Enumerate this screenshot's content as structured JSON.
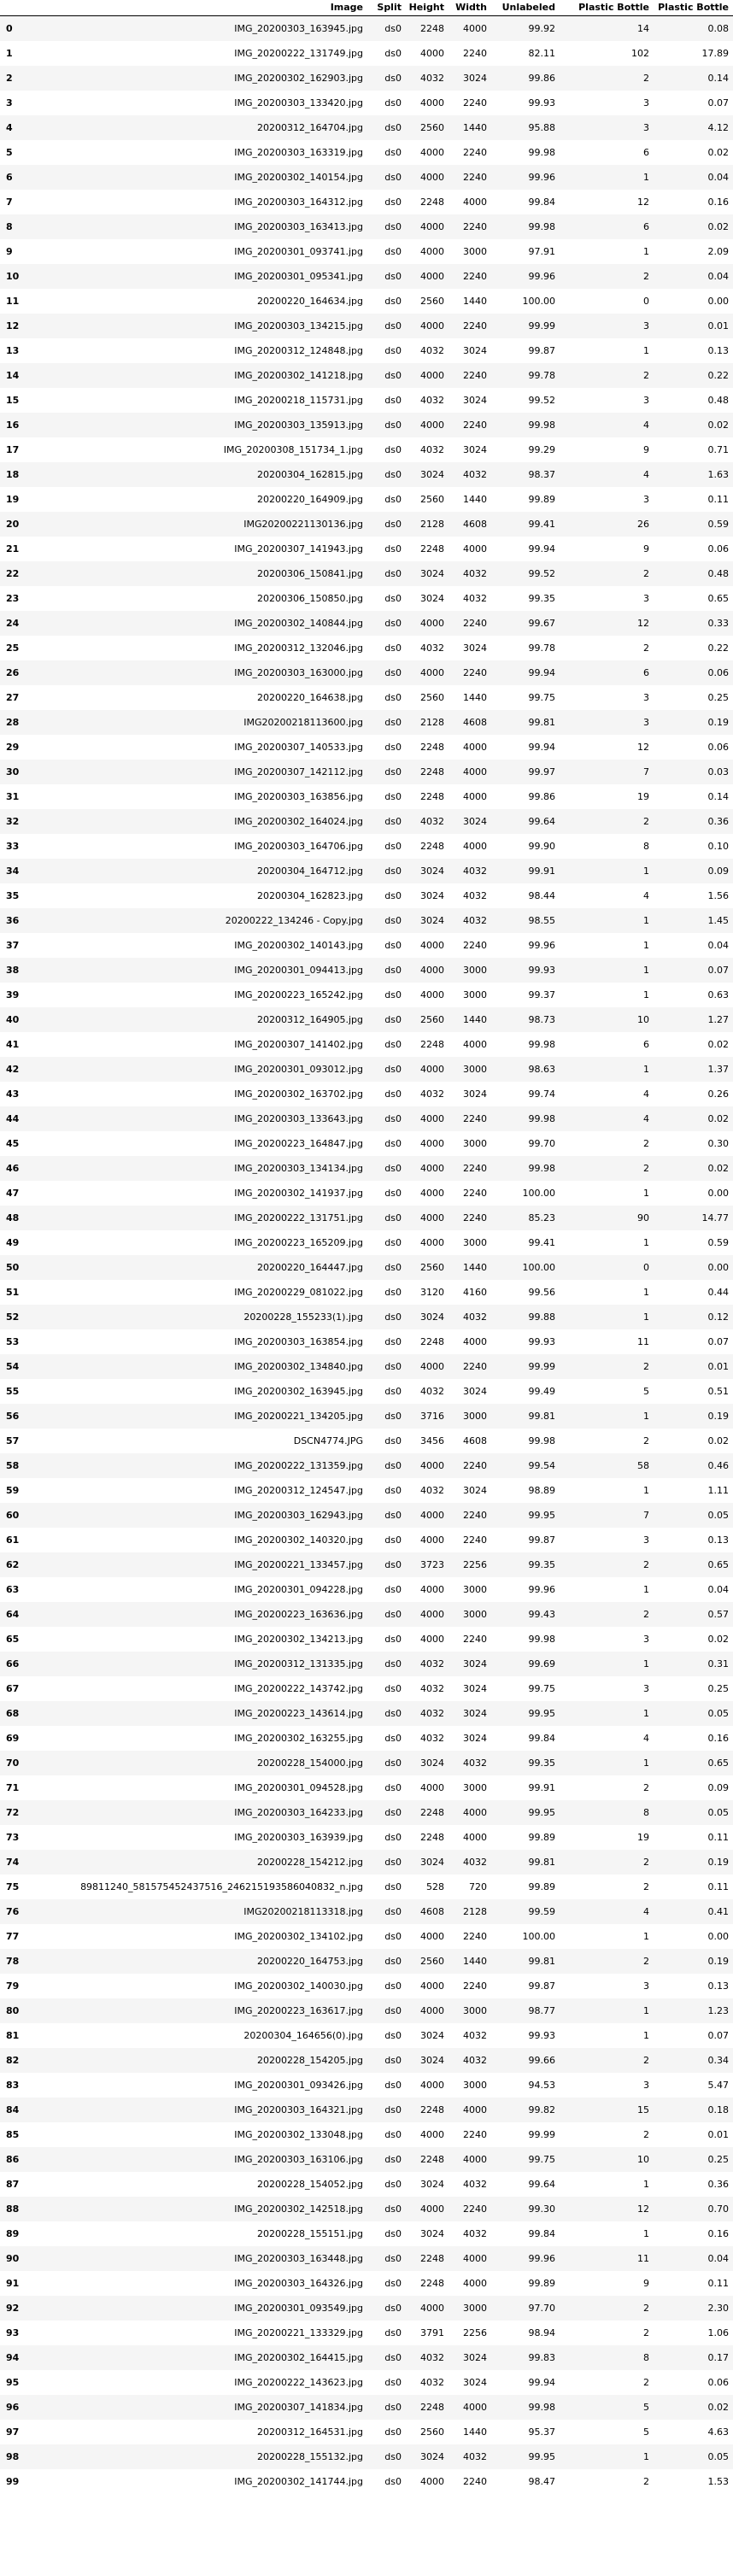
{
  "table": {
    "headers": [
      "",
      "Image",
      "Split",
      "Height",
      "Width",
      "Unlabeled",
      "Plastic Bottle",
      "Plastic Bottle"
    ],
    "rows": [
      [
        "0",
        "IMG_20200303_163945.jpg",
        "ds0",
        "2248",
        "4000",
        "99.92",
        "14",
        "0.08"
      ],
      [
        "1",
        "IMG_20200222_131749.jpg",
        "ds0",
        "4000",
        "2240",
        "82.11",
        "102",
        "17.89"
      ],
      [
        "2",
        "IMG_20200302_162903.jpg",
        "ds0",
        "4032",
        "3024",
        "99.86",
        "2",
        "0.14"
      ],
      [
        "3",
        "IMG_20200303_133420.jpg",
        "ds0",
        "4000",
        "2240",
        "99.93",
        "3",
        "0.07"
      ],
      [
        "4",
        "20200312_164704.jpg",
        "ds0",
        "2560",
        "1440",
        "95.88",
        "3",
        "4.12"
      ],
      [
        "5",
        "IMG_20200303_163319.jpg",
        "ds0",
        "4000",
        "2240",
        "99.98",
        "6",
        "0.02"
      ],
      [
        "6",
        "IMG_20200302_140154.jpg",
        "ds0",
        "4000",
        "2240",
        "99.96",
        "1",
        "0.04"
      ],
      [
        "7",
        "IMG_20200303_164312.jpg",
        "ds0",
        "2248",
        "4000",
        "99.84",
        "12",
        "0.16"
      ],
      [
        "8",
        "IMG_20200303_163413.jpg",
        "ds0",
        "4000",
        "2240",
        "99.98",
        "6",
        "0.02"
      ],
      [
        "9",
        "IMG_20200301_093741.jpg",
        "ds0",
        "4000",
        "3000",
        "97.91",
        "1",
        "2.09"
      ],
      [
        "10",
        "IMG_20200301_095341.jpg",
        "ds0",
        "4000",
        "2240",
        "99.96",
        "2",
        "0.04"
      ],
      [
        "11",
        "20200220_164634.jpg",
        "ds0",
        "2560",
        "1440",
        "100.00",
        "0",
        "0.00"
      ],
      [
        "12",
        "IMG_20200303_134215.jpg",
        "ds0",
        "4000",
        "2240",
        "99.99",
        "3",
        "0.01"
      ],
      [
        "13",
        "IMG_20200312_124848.jpg",
        "ds0",
        "4032",
        "3024",
        "99.87",
        "1",
        "0.13"
      ],
      [
        "14",
        "IMG_20200302_141218.jpg",
        "ds0",
        "4000",
        "2240",
        "99.78",
        "2",
        "0.22"
      ],
      [
        "15",
        "IMG_20200218_115731.jpg",
        "ds0",
        "4032",
        "3024",
        "99.52",
        "3",
        "0.48"
      ],
      [
        "16",
        "IMG_20200303_135913.jpg",
        "ds0",
        "4000",
        "2240",
        "99.98",
        "4",
        "0.02"
      ],
      [
        "17",
        "IMG_20200308_151734_1.jpg",
        "ds0",
        "4032",
        "3024",
        "99.29",
        "9",
        "0.71"
      ],
      [
        "18",
        "20200304_162815.jpg",
        "ds0",
        "3024",
        "4032",
        "98.37",
        "4",
        "1.63"
      ],
      [
        "19",
        "20200220_164909.jpg",
        "ds0",
        "2560",
        "1440",
        "99.89",
        "3",
        "0.11"
      ],
      [
        "20",
        "IMG20200221130136.jpg",
        "ds0",
        "2128",
        "4608",
        "99.41",
        "26",
        "0.59"
      ],
      [
        "21",
        "IMG_20200307_141943.jpg",
        "ds0",
        "2248",
        "4000",
        "99.94",
        "9",
        "0.06"
      ],
      [
        "22",
        "20200306_150841.jpg",
        "ds0",
        "3024",
        "4032",
        "99.52",
        "2",
        "0.48"
      ],
      [
        "23",
        "20200306_150850.jpg",
        "ds0",
        "3024",
        "4032",
        "99.35",
        "3",
        "0.65"
      ],
      [
        "24",
        "IMG_20200302_140844.jpg",
        "ds0",
        "4000",
        "2240",
        "99.67",
        "12",
        "0.33"
      ],
      [
        "25",
        "IMG_20200312_132046.jpg",
        "ds0",
        "4032",
        "3024",
        "99.78",
        "2",
        "0.22"
      ],
      [
        "26",
        "IMG_20200303_163000.jpg",
        "ds0",
        "4000",
        "2240",
        "99.94",
        "6",
        "0.06"
      ],
      [
        "27",
        "20200220_164638.jpg",
        "ds0",
        "2560",
        "1440",
        "99.75",
        "3",
        "0.25"
      ],
      [
        "28",
        "IMG20200218113600.jpg",
        "ds0",
        "2128",
        "4608",
        "99.81",
        "3",
        "0.19"
      ],
      [
        "29",
        "IMG_20200307_140533.jpg",
        "ds0",
        "2248",
        "4000",
        "99.94",
        "12",
        "0.06"
      ],
      [
        "30",
        "IMG_20200307_142112.jpg",
        "ds0",
        "2248",
        "4000",
        "99.97",
        "7",
        "0.03"
      ],
      [
        "31",
        "IMG_20200303_163856.jpg",
        "ds0",
        "2248",
        "4000",
        "99.86",
        "19",
        "0.14"
      ],
      [
        "32",
        "IMG_20200302_164024.jpg",
        "ds0",
        "4032",
        "3024",
        "99.64",
        "2",
        "0.36"
      ],
      [
        "33",
        "IMG_20200303_164706.jpg",
        "ds0",
        "2248",
        "4000",
        "99.90",
        "8",
        "0.10"
      ],
      [
        "34",
        "20200304_164712.jpg",
        "ds0",
        "3024",
        "4032",
        "99.91",
        "1",
        "0.09"
      ],
      [
        "35",
        "20200304_162823.jpg",
        "ds0",
        "3024",
        "4032",
        "98.44",
        "4",
        "1.56"
      ],
      [
        "36",
        "20200222_134246 - Copy.jpg",
        "ds0",
        "3024",
        "4032",
        "98.55",
        "1",
        "1.45"
      ],
      [
        "37",
        "IMG_20200302_140143.jpg",
        "ds0",
        "4000",
        "2240",
        "99.96",
        "1",
        "0.04"
      ],
      [
        "38",
        "IMG_20200301_094413.jpg",
        "ds0",
        "4000",
        "3000",
        "99.93",
        "1",
        "0.07"
      ],
      [
        "39",
        "IMG_20200223_165242.jpg",
        "ds0",
        "4000",
        "3000",
        "99.37",
        "1",
        "0.63"
      ],
      [
        "40",
        "20200312_164905.jpg",
        "ds0",
        "2560",
        "1440",
        "98.73",
        "10",
        "1.27"
      ],
      [
        "41",
        "IMG_20200307_141402.jpg",
        "ds0",
        "2248",
        "4000",
        "99.98",
        "6",
        "0.02"
      ],
      [
        "42",
        "IMG_20200301_093012.jpg",
        "ds0",
        "4000",
        "3000",
        "98.63",
        "1",
        "1.37"
      ],
      [
        "43",
        "IMG_20200302_163702.jpg",
        "ds0",
        "4032",
        "3024",
        "99.74",
        "4",
        "0.26"
      ],
      [
        "44",
        "IMG_20200303_133643.jpg",
        "ds0",
        "4000",
        "2240",
        "99.98",
        "4",
        "0.02"
      ],
      [
        "45",
        "IMG_20200223_164847.jpg",
        "ds0",
        "4000",
        "3000",
        "99.70",
        "2",
        "0.30"
      ],
      [
        "46",
        "IMG_20200303_134134.jpg",
        "ds0",
        "4000",
        "2240",
        "99.98",
        "2",
        "0.02"
      ],
      [
        "47",
        "IMG_20200302_141937.jpg",
        "ds0",
        "4000",
        "2240",
        "100.00",
        "1",
        "0.00"
      ],
      [
        "48",
        "IMG_20200222_131751.jpg",
        "ds0",
        "4000",
        "2240",
        "85.23",
        "90",
        "14.77"
      ],
      [
        "49",
        "IMG_20200223_165209.jpg",
        "ds0",
        "4000",
        "3000",
        "99.41",
        "1",
        "0.59"
      ],
      [
        "50",
        "20200220_164447.jpg",
        "ds0",
        "2560",
        "1440",
        "100.00",
        "0",
        "0.00"
      ],
      [
        "51",
        "IMG_20200229_081022.jpg",
        "ds0",
        "3120",
        "4160",
        "99.56",
        "1",
        "0.44"
      ],
      [
        "52",
        "20200228_155233(1).jpg",
        "ds0",
        "3024",
        "4032",
        "99.88",
        "1",
        "0.12"
      ],
      [
        "53",
        "IMG_20200303_163854.jpg",
        "ds0",
        "2248",
        "4000",
        "99.93",
        "11",
        "0.07"
      ],
      [
        "54",
        "IMG_20200302_134840.jpg",
        "ds0",
        "4000",
        "2240",
        "99.99",
        "2",
        "0.01"
      ],
      [
        "55",
        "IMG_20200302_163945.jpg",
        "ds0",
        "4032",
        "3024",
        "99.49",
        "5",
        "0.51"
      ],
      [
        "56",
        "IMG_20200221_134205.jpg",
        "ds0",
        "3716",
        "3000",
        "99.81",
        "1",
        "0.19"
      ],
      [
        "57",
        "DSCN4774.JPG",
        "ds0",
        "3456",
        "4608",
        "99.98",
        "2",
        "0.02"
      ],
      [
        "58",
        "IMG_20200222_131359.jpg",
        "ds0",
        "4000",
        "2240",
        "99.54",
        "58",
        "0.46"
      ],
      [
        "59",
        "IMG_20200312_124547.jpg",
        "ds0",
        "4032",
        "3024",
        "98.89",
        "1",
        "1.11"
      ],
      [
        "60",
        "IMG_20200303_162943.jpg",
        "ds0",
        "4000",
        "2240",
        "99.95",
        "7",
        "0.05"
      ],
      [
        "61",
        "IMG_20200302_140320.jpg",
        "ds0",
        "4000",
        "2240",
        "99.87",
        "3",
        "0.13"
      ],
      [
        "62",
        "IMG_20200221_133457.jpg",
        "ds0",
        "3723",
        "2256",
        "99.35",
        "2",
        "0.65"
      ],
      [
        "63",
        "IMG_20200301_094228.jpg",
        "ds0",
        "4000",
        "3000",
        "99.96",
        "1",
        "0.04"
      ],
      [
        "64",
        "IMG_20200223_163636.jpg",
        "ds0",
        "4000",
        "3000",
        "99.43",
        "2",
        "0.57"
      ],
      [
        "65",
        "IMG_20200302_134213.jpg",
        "ds0",
        "4000",
        "2240",
        "99.98",
        "3",
        "0.02"
      ],
      [
        "66",
        "IMG_20200312_131335.jpg",
        "ds0",
        "4032",
        "3024",
        "99.69",
        "1",
        "0.31"
      ],
      [
        "67",
        "IMG_20200222_143742.jpg",
        "ds0",
        "4032",
        "3024",
        "99.75",
        "3",
        "0.25"
      ],
      [
        "68",
        "IMG_20200223_143614.jpg",
        "ds0",
        "4032",
        "3024",
        "99.95",
        "1",
        "0.05"
      ],
      [
        "69",
        "IMG_20200302_163255.jpg",
        "ds0",
        "4032",
        "3024",
        "99.84",
        "4",
        "0.16"
      ],
      [
        "70",
        "20200228_154000.jpg",
        "ds0",
        "3024",
        "4032",
        "99.35",
        "1",
        "0.65"
      ],
      [
        "71",
        "IMG_20200301_094528.jpg",
        "ds0",
        "4000",
        "3000",
        "99.91",
        "2",
        "0.09"
      ],
      [
        "72",
        "IMG_20200303_164233.jpg",
        "ds0",
        "2248",
        "4000",
        "99.95",
        "8",
        "0.05"
      ],
      [
        "73",
        "IMG_20200303_163939.jpg",
        "ds0",
        "2248",
        "4000",
        "99.89",
        "19",
        "0.11"
      ],
      [
        "74",
        "20200228_154212.jpg",
        "ds0",
        "3024",
        "4032",
        "99.81",
        "2",
        "0.19"
      ],
      [
        "75",
        "89811240_581575452437516_246215193586040832_n.jpg",
        "ds0",
        "528",
        "720",
        "99.89",
        "2",
        "0.11"
      ],
      [
        "76",
        "IMG20200218113318.jpg",
        "ds0",
        "4608",
        "2128",
        "99.59",
        "4",
        "0.41"
      ],
      [
        "77",
        "IMG_20200302_134102.jpg",
        "ds0",
        "4000",
        "2240",
        "100.00",
        "1",
        "0.00"
      ],
      [
        "78",
        "20200220_164753.jpg",
        "ds0",
        "2560",
        "1440",
        "99.81",
        "2",
        "0.19"
      ],
      [
        "79",
        "IMG_20200302_140030.jpg",
        "ds0",
        "4000",
        "2240",
        "99.87",
        "3",
        "0.13"
      ],
      [
        "80",
        "IMG_20200223_163617.jpg",
        "ds0",
        "4000",
        "3000",
        "98.77",
        "1",
        "1.23"
      ],
      [
        "81",
        "20200304_164656(0).jpg",
        "ds0",
        "3024",
        "4032",
        "99.93",
        "1",
        "0.07"
      ],
      [
        "82",
        "20200228_154205.jpg",
        "ds0",
        "3024",
        "4032",
        "99.66",
        "2",
        "0.34"
      ],
      [
        "83",
        "IMG_20200301_093426.jpg",
        "ds0",
        "4000",
        "3000",
        "94.53",
        "3",
        "5.47"
      ],
      [
        "84",
        "IMG_20200303_164321.jpg",
        "ds0",
        "2248",
        "4000",
        "99.82",
        "15",
        "0.18"
      ],
      [
        "85",
        "IMG_20200302_133048.jpg",
        "ds0",
        "4000",
        "2240",
        "99.99",
        "2",
        "0.01"
      ],
      [
        "86",
        "IMG_20200303_163106.jpg",
        "ds0",
        "2248",
        "4000",
        "99.75",
        "10",
        "0.25"
      ],
      [
        "87",
        "20200228_154052.jpg",
        "ds0",
        "3024",
        "4032",
        "99.64",
        "1",
        "0.36"
      ],
      [
        "88",
        "IMG_20200302_142518.jpg",
        "ds0",
        "4000",
        "2240",
        "99.30",
        "12",
        "0.70"
      ],
      [
        "89",
        "20200228_155151.jpg",
        "ds0",
        "3024",
        "4032",
        "99.84",
        "1",
        "0.16"
      ],
      [
        "90",
        "IMG_20200303_163448.jpg",
        "ds0",
        "2248",
        "4000",
        "99.96",
        "11",
        "0.04"
      ],
      [
        "91",
        "IMG_20200303_164326.jpg",
        "ds0",
        "2248",
        "4000",
        "99.89",
        "9",
        "0.11"
      ],
      [
        "92",
        "IMG_20200301_093549.jpg",
        "ds0",
        "4000",
        "3000",
        "97.70",
        "2",
        "2.30"
      ],
      [
        "93",
        "IMG_20200221_133329.jpg",
        "ds0",
        "3791",
        "2256",
        "98.94",
        "2",
        "1.06"
      ],
      [
        "94",
        "IMG_20200302_164415.jpg",
        "ds0",
        "4032",
        "3024",
        "99.83",
        "8",
        "0.17"
      ],
      [
        "95",
        "IMG_20200222_143623.jpg",
        "ds0",
        "4032",
        "3024",
        "99.94",
        "2",
        "0.06"
      ],
      [
        "96",
        "IMG_20200307_141834.jpg",
        "ds0",
        "2248",
        "4000",
        "99.98",
        "5",
        "0.02"
      ],
      [
        "97",
        "20200312_164531.jpg",
        "ds0",
        "2560",
        "1440",
        "95.37",
        "5",
        "4.63"
      ],
      [
        "98",
        "20200228_155132.jpg",
        "ds0",
        "3024",
        "4032",
        "99.95",
        "1",
        "0.05"
      ],
      [
        "99",
        "IMG_20200302_141744.jpg",
        "ds0",
        "4000",
        "2240",
        "98.47",
        "2",
        "1.53"
      ]
    ]
  }
}
